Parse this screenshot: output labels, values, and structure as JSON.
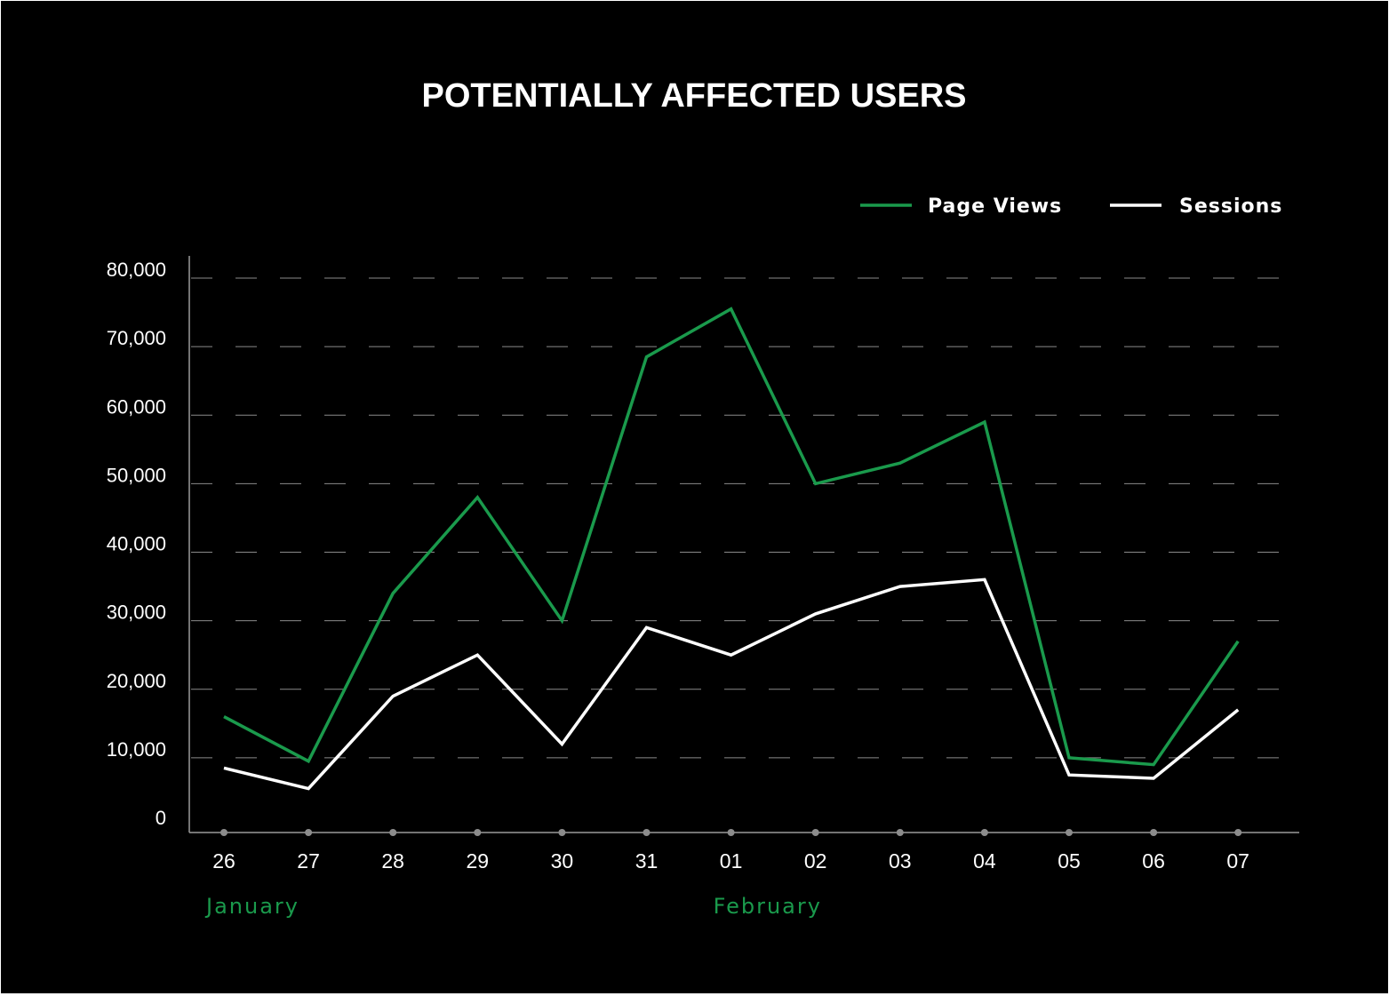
{
  "colors": {
    "background": "#000000",
    "page_views": "#1a9a4c",
    "sessions": "#ffffff",
    "grid": "#8a8a8a",
    "axis": "#9a9a9a",
    "month_label": "#1a9a4c"
  },
  "chart_data": {
    "type": "line",
    "title": "POTENTIALLY AFFECTED USERS",
    "xlabel": "",
    "ylabel": "",
    "categories": [
      "26",
      "27",
      "28",
      "29",
      "30",
      "31",
      "01",
      "02",
      "03",
      "04",
      "05",
      "06",
      "07"
    ],
    "month_labels": [
      {
        "text": "January",
        "starts_at": "26"
      },
      {
        "text": "February",
        "starts_at": "01"
      }
    ],
    "yticks": [
      "0",
      "10,000",
      "20,000",
      "30,000",
      "40,000",
      "50,000",
      "60,000",
      "70,000",
      "80,000"
    ],
    "ylim": [
      0,
      80000
    ],
    "grid": true,
    "legend_position": "top-right",
    "series": [
      {
        "name": "Page Views",
        "color": "#1a9a4c",
        "values": [
          16000,
          9500,
          34000,
          48000,
          30000,
          68500,
          75500,
          50000,
          53000,
          59000,
          10000,
          9000,
          27000
        ]
      },
      {
        "name": "Sessions",
        "color": "#ffffff",
        "values": [
          8500,
          5500,
          19000,
          25000,
          12000,
          29000,
          25000,
          31000,
          35000,
          36000,
          7500,
          7000,
          17000
        ]
      }
    ]
  }
}
